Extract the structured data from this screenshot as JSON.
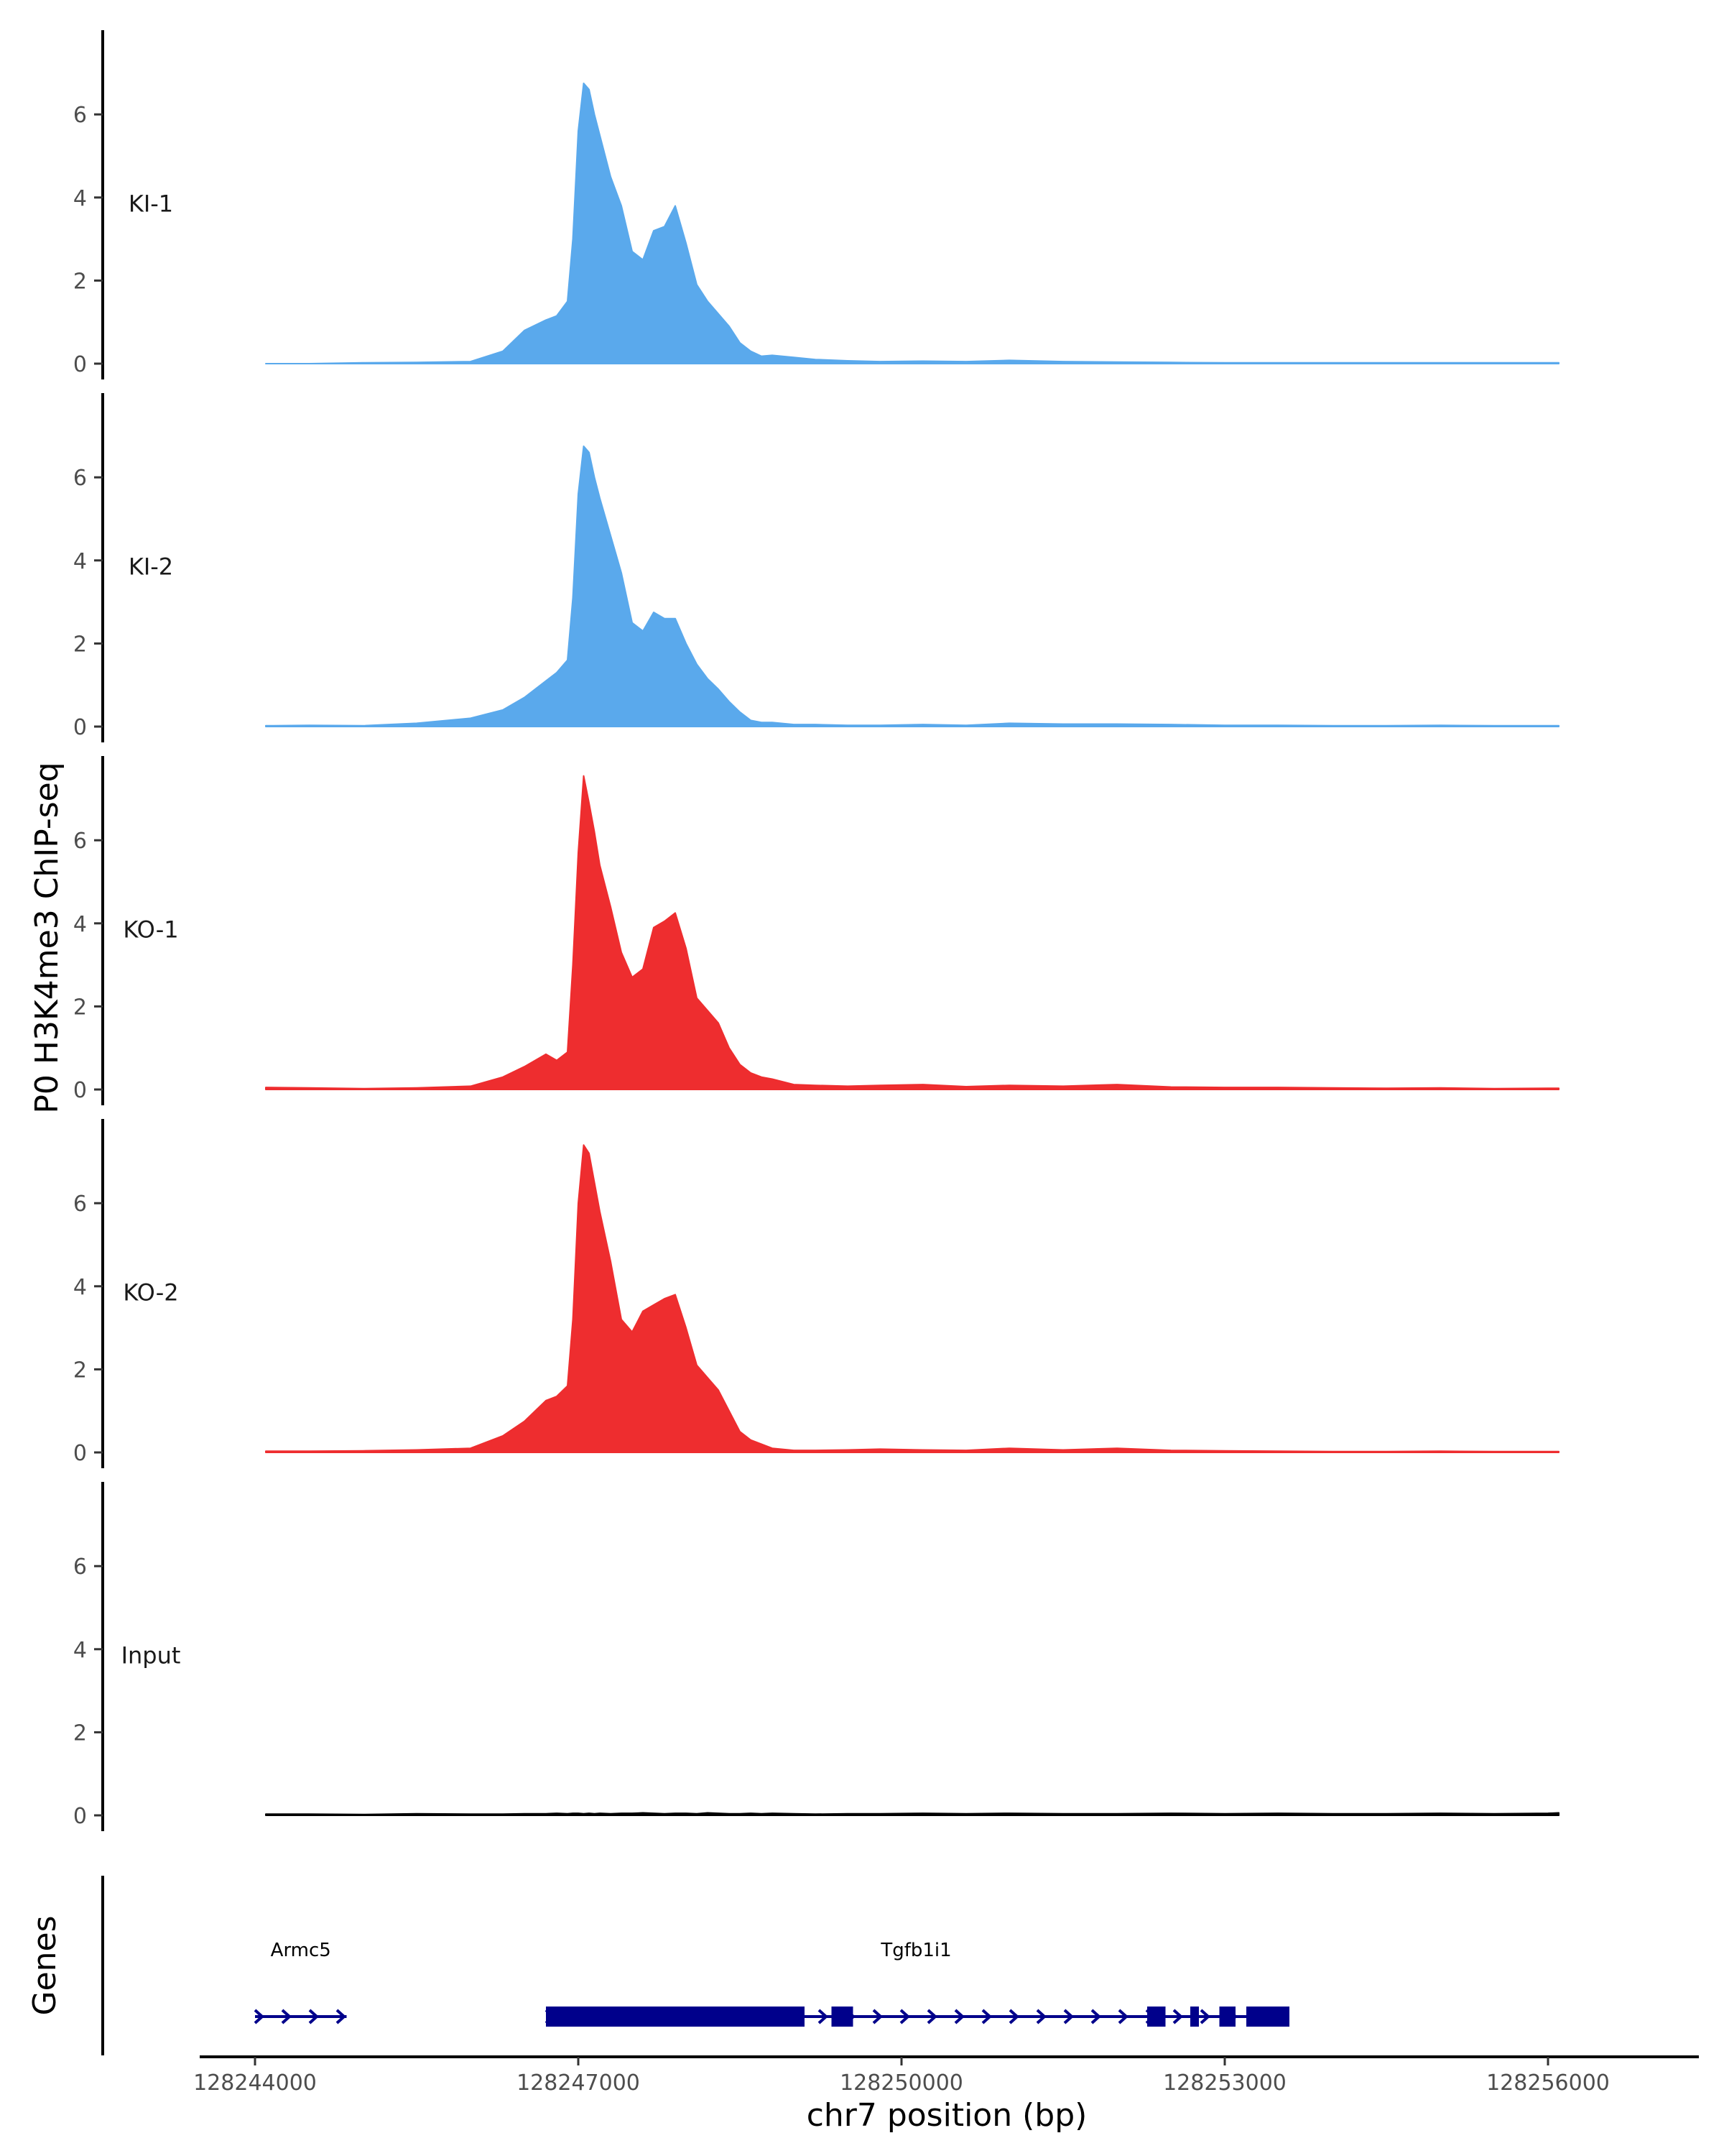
{
  "chart_data": {
    "type": "area",
    "ylabel": "P0 H3K4me3 ChIP-seq",
    "xlabel": "chr7 position (bp)",
    "ylim": [
      0,
      8
    ],
    "y_ticks": [
      0,
      2,
      4,
      6
    ],
    "xlim": [
      128243500,
      128257400
    ],
    "x_ticks": [
      128244000,
      128247000,
      128250000,
      128253000,
      128256000
    ],
    "x_tick_labels": [
      "128244000",
      "128247000",
      "128250000",
      "128253000",
      "128256000"
    ],
    "grid": false,
    "x": [
      128244100,
      128244500,
      128245000,
      128245500,
      128246000,
      128246300,
      128246500,
      128246700,
      128246800,
      128246900,
      128246950,
      128247000,
      128247050,
      128247100,
      128247150,
      128247200,
      128247300,
      128247400,
      128247500,
      128247600,
      128247700,
      128247800,
      128247900,
      128248000,
      128248100,
      128248200,
      128248300,
      128248400,
      128248500,
      128248600,
      128248700,
      128248800,
      128249000,
      128249200,
      128249500,
      128249800,
      128250200,
      128250600,
      128251000,
      128251500,
      128252000,
      128252500,
      128253000,
      128253500,
      128254000,
      128254500,
      128255000,
      128255500,
      128256000,
      128256100
    ],
    "series": [
      {
        "name": "KI-1",
        "color": "#5aa9ec",
        "values": [
          0.0,
          0.0,
          0.02,
          0.03,
          0.05,
          0.3,
          0.8,
          1.05,
          1.15,
          1.5,
          3.0,
          5.6,
          6.75,
          6.6,
          6.0,
          5.5,
          4.5,
          3.8,
          2.7,
          2.5,
          3.2,
          3.3,
          3.8,
          2.9,
          1.9,
          1.5,
          1.2,
          0.9,
          0.5,
          0.3,
          0.18,
          0.2,
          0.15,
          0.1,
          0.07,
          0.05,
          0.06,
          0.05,
          0.08,
          0.05,
          0.04,
          0.03,
          0.02,
          0.02,
          0.02,
          0.02,
          0.02,
          0.02,
          0.02,
          0.02
        ]
      },
      {
        "name": "KI-2",
        "color": "#5aa9ec",
        "values": [
          0.02,
          0.03,
          0.02,
          0.08,
          0.2,
          0.4,
          0.7,
          1.1,
          1.3,
          1.6,
          3.1,
          5.6,
          6.75,
          6.6,
          6.0,
          5.5,
          4.6,
          3.7,
          2.5,
          2.3,
          2.75,
          2.6,
          2.6,
          2.0,
          1.5,
          1.15,
          0.9,
          0.6,
          0.35,
          0.15,
          0.1,
          0.1,
          0.05,
          0.05,
          0.03,
          0.03,
          0.05,
          0.03,
          0.08,
          0.06,
          0.06,
          0.05,
          0.03,
          0.03,
          0.02,
          0.02,
          0.03,
          0.02,
          0.02,
          0.02
        ]
      },
      {
        "name": "KO-1",
        "color": "#ee2d2f",
        "values": [
          0.05,
          0.04,
          0.02,
          0.04,
          0.08,
          0.3,
          0.55,
          0.85,
          0.7,
          0.9,
          3.0,
          5.7,
          7.55,
          6.9,
          6.2,
          5.4,
          4.4,
          3.3,
          2.7,
          2.9,
          3.9,
          4.05,
          4.25,
          3.4,
          2.2,
          1.9,
          1.6,
          1.0,
          0.6,
          0.4,
          0.3,
          0.25,
          0.12,
          0.1,
          0.08,
          0.1,
          0.12,
          0.07,
          0.1,
          0.08,
          0.12,
          0.06,
          0.05,
          0.05,
          0.04,
          0.03,
          0.04,
          0.02,
          0.03,
          0.03
        ]
      },
      {
        "name": "KO-2",
        "color": "#ee2d2f",
        "values": [
          0.03,
          0.03,
          0.04,
          0.06,
          0.1,
          0.4,
          0.75,
          1.25,
          1.35,
          1.6,
          3.2,
          6.0,
          7.4,
          7.2,
          6.5,
          5.8,
          4.6,
          3.2,
          2.9,
          3.4,
          3.55,
          3.7,
          3.8,
          3.0,
          2.1,
          1.8,
          1.5,
          1.0,
          0.5,
          0.3,
          0.2,
          0.1,
          0.05,
          0.05,
          0.06,
          0.08,
          0.06,
          0.05,
          0.1,
          0.06,
          0.1,
          0.05,
          0.04,
          0.03,
          0.02,
          0.02,
          0.03,
          0.02,
          0.02,
          0.02
        ]
      },
      {
        "name": "Input",
        "color": "#000000",
        "values": [
          0.03,
          0.03,
          0.02,
          0.04,
          0.03,
          0.03,
          0.04,
          0.04,
          0.05,
          0.04,
          0.05,
          0.05,
          0.04,
          0.05,
          0.04,
          0.05,
          0.04,
          0.05,
          0.05,
          0.06,
          0.05,
          0.04,
          0.05,
          0.05,
          0.04,
          0.06,
          0.05,
          0.04,
          0.04,
          0.05,
          0.04,
          0.05,
          0.04,
          0.03,
          0.04,
          0.04,
          0.05,
          0.04,
          0.05,
          0.04,
          0.04,
          0.05,
          0.04,
          0.05,
          0.04,
          0.04,
          0.05,
          0.04,
          0.05,
          0.06
        ]
      }
    ],
    "genes_track": {
      "title": "Genes",
      "color": "#00008b",
      "genes": [
        {
          "name": "Armc5",
          "start": 128244000,
          "end": 128244850,
          "strand": "+",
          "exons": []
        },
        {
          "name": "Tgfb1i1",
          "start": 128246700,
          "end": 128253600,
          "strand": "+",
          "exons": [
            [
              128246700,
              128249100
            ],
            [
              128249350,
              128249550
            ],
            [
              128252280,
              128252450
            ],
            [
              128252680,
              128252760
            ],
            [
              128252950,
              128253100
            ],
            [
              128253200,
              128253600
            ]
          ]
        }
      ]
    }
  }
}
